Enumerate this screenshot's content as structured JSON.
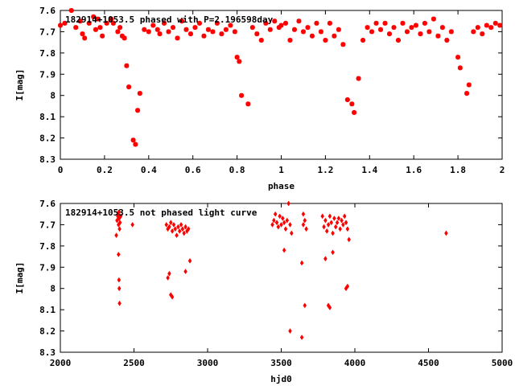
{
  "chart_data": [
    {
      "type": "scatter",
      "title": "182914+1053.5 phased with P=2.196598day",
      "xlabel": "phase",
      "ylabel": "I[mag]",
      "xlim": [
        0,
        2
      ],
      "ylim": [
        7.6,
        8.3
      ],
      "y_inverted": true,
      "grid": false,
      "xticks": [
        "0",
        "0.2",
        "0.4",
        "0.6",
        "0.8",
        "1",
        "1.2",
        "1.4",
        "1.6",
        "1.8",
        "2"
      ],
      "yticks": [
        "7.6",
        "7.7",
        "7.8",
        "7.9",
        "8",
        "8.1",
        "8.2",
        "8.3"
      ],
      "marker": "star",
      "color": "#ff0000",
      "points": [
        [
          0.0,
          7.67
        ],
        [
          0.02,
          7.66
        ],
        [
          0.05,
          7.6
        ],
        [
          0.07,
          7.68
        ],
        [
          0.09,
          7.65
        ],
        [
          0.1,
          7.71
        ],
        [
          0.11,
          7.73
        ],
        [
          0.13,
          7.66
        ],
        [
          0.15,
          7.63
        ],
        [
          0.16,
          7.69
        ],
        [
          0.17,
          7.64
        ],
        [
          0.18,
          7.68
        ],
        [
          0.19,
          7.72
        ],
        [
          0.21,
          7.66
        ],
        [
          0.23,
          7.64
        ],
        [
          0.24,
          7.66
        ],
        [
          0.26,
          7.7
        ],
        [
          0.27,
          7.68
        ],
        [
          0.28,
          7.72
        ],
        [
          0.29,
          7.73
        ],
        [
          0.3,
          7.86
        ],
        [
          0.31,
          7.96
        ],
        [
          0.33,
          8.21
        ],
        [
          0.34,
          8.23
        ],
        [
          0.35,
          8.07
        ],
        [
          0.36,
          7.99
        ],
        [
          0.38,
          7.69
        ],
        [
          0.4,
          7.7
        ],
        [
          0.42,
          7.67
        ],
        [
          0.44,
          7.69
        ],
        [
          0.45,
          7.71
        ],
        [
          0.47,
          7.66
        ],
        [
          0.49,
          7.7
        ],
        [
          0.51,
          7.68
        ],
        [
          0.53,
          7.73
        ],
        [
          0.55,
          7.65
        ],
        [
          0.57,
          7.69
        ],
        [
          0.59,
          7.71
        ],
        [
          0.61,
          7.68
        ],
        [
          0.63,
          7.66
        ],
        [
          0.65,
          7.72
        ],
        [
          0.67,
          7.69
        ],
        [
          0.69,
          7.7
        ],
        [
          0.71,
          7.66
        ],
        [
          0.73,
          7.71
        ],
        [
          0.75,
          7.69
        ],
        [
          0.77,
          7.67
        ],
        [
          0.79,
          7.7
        ],
        [
          0.8,
          7.82
        ],
        [
          0.81,
          7.84
        ],
        [
          0.82,
          8.0
        ],
        [
          0.85,
          8.04
        ],
        [
          0.87,
          7.68
        ],
        [
          0.89,
          7.71
        ],
        [
          0.91,
          7.74
        ],
        [
          0.93,
          7.66
        ],
        [
          0.95,
          7.69
        ],
        [
          0.97,
          7.65
        ],
        [
          0.99,
          7.68
        ],
        [
          1.0,
          7.67
        ],
        [
          1.02,
          7.66
        ],
        [
          1.04,
          7.74
        ],
        [
          1.06,
          7.69
        ],
        [
          1.08,
          7.65
        ],
        [
          1.1,
          7.7
        ],
        [
          1.12,
          7.68
        ],
        [
          1.14,
          7.72
        ],
        [
          1.16,
          7.66
        ],
        [
          1.18,
          7.7
        ],
        [
          1.2,
          7.74
        ],
        [
          1.22,
          7.66
        ],
        [
          1.24,
          7.72
        ],
        [
          1.26,
          7.69
        ],
        [
          1.28,
          7.76
        ],
        [
          1.3,
          8.02
        ],
        [
          1.32,
          8.04
        ],
        [
          1.33,
          8.08
        ],
        [
          1.35,
          7.92
        ],
        [
          1.37,
          7.74
        ],
        [
          1.39,
          7.68
        ],
        [
          1.41,
          7.7
        ],
        [
          1.43,
          7.66
        ],
        [
          1.45,
          7.69
        ],
        [
          1.47,
          7.66
        ],
        [
          1.49,
          7.71
        ],
        [
          1.51,
          7.68
        ],
        [
          1.53,
          7.74
        ],
        [
          1.55,
          7.66
        ],
        [
          1.57,
          7.7
        ],
        [
          1.59,
          7.68
        ],
        [
          1.61,
          7.67
        ],
        [
          1.63,
          7.71
        ],
        [
          1.65,
          7.66
        ],
        [
          1.67,
          7.7
        ],
        [
          1.69,
          7.64
        ],
        [
          1.71,
          7.72
        ],
        [
          1.73,
          7.68
        ],
        [
          1.75,
          7.74
        ],
        [
          1.77,
          7.7
        ],
        [
          1.8,
          7.82
        ],
        [
          1.81,
          7.87
        ],
        [
          1.84,
          7.99
        ],
        [
          1.85,
          7.95
        ],
        [
          1.87,
          7.7
        ],
        [
          1.89,
          7.68
        ],
        [
          1.91,
          7.71
        ],
        [
          1.93,
          7.67
        ],
        [
          1.95,
          7.68
        ],
        [
          1.97,
          7.66
        ],
        [
          1.99,
          7.67
        ]
      ]
    },
    {
      "type": "scatter",
      "title": "182914+1053.5 not phased light curve",
      "xlabel": "hjd0",
      "ylabel": "I[mag]",
      "xlim": [
        2000,
        5000
      ],
      "ylim": [
        7.6,
        8.3
      ],
      "y_inverted": true,
      "grid": false,
      "xticks": [
        "2000",
        "2500",
        "3000",
        "3500",
        "4000",
        "4500",
        "5000"
      ],
      "yticks": [
        "7.6",
        "7.7",
        "7.8",
        "7.9",
        "8",
        "8.1",
        "8.2",
        "8.3"
      ],
      "marker": "diamond",
      "color": "#ff0000",
      "points": [
        [
          2380,
          7.75
        ],
        [
          2385,
          7.68
        ],
        [
          2390,
          7.66
        ],
        [
          2392,
          7.65
        ],
        [
          2395,
          7.7
        ],
        [
          2398,
          7.64
        ],
        [
          2400,
          7.67
        ],
        [
          2402,
          7.72
        ],
        [
          2395,
          7.84
        ],
        [
          2398,
          7.96
        ],
        [
          2400,
          8.0
        ],
        [
          2402,
          8.07
        ],
        [
          2405,
          7.69
        ],
        [
          2410,
          7.66
        ],
        [
          2490,
          7.7
        ],
        [
          2720,
          7.7
        ],
        [
          2730,
          7.72
        ],
        [
          2740,
          7.71
        ],
        [
          2750,
          7.69
        ],
        [
          2760,
          7.73
        ],
        [
          2770,
          7.7
        ],
        [
          2780,
          7.72
        ],
        [
          2790,
          7.75
        ],
        [
          2800,
          7.71
        ],
        [
          2810,
          7.73
        ],
        [
          2820,
          7.7
        ],
        [
          2830,
          7.72
        ],
        [
          2840,
          7.74
        ],
        [
          2850,
          7.71
        ],
        [
          2860,
          7.73
        ],
        [
          2870,
          7.72
        ],
        [
          2730,
          7.95
        ],
        [
          2740,
          7.93
        ],
        [
          2750,
          8.03
        ],
        [
          2760,
          8.04
        ],
        [
          2850,
          7.92
        ],
        [
          2880,
          7.87
        ],
        [
          3440,
          7.7
        ],
        [
          3450,
          7.68
        ],
        [
          3460,
          7.65
        ],
        [
          3470,
          7.69
        ],
        [
          3480,
          7.71
        ],
        [
          3490,
          7.66
        ],
        [
          3500,
          7.7
        ],
        [
          3510,
          7.67
        ],
        [
          3520,
          7.69
        ],
        [
          3530,
          7.72
        ],
        [
          3540,
          7.68
        ],
        [
          3550,
          7.6
        ],
        [
          3560,
          7.7
        ],
        [
          3570,
          7.74
        ],
        [
          3520,
          7.82
        ],
        [
          3560,
          8.2
        ],
        [
          3640,
          8.23
        ],
        [
          3640,
          7.88
        ],
        [
          3660,
          8.08
        ],
        [
          3650,
          7.7
        ],
        [
          3660,
          7.68
        ],
        [
          3670,
          7.72
        ],
        [
          3650,
          7.65
        ],
        [
          3780,
          7.66
        ],
        [
          3790,
          7.71
        ],
        [
          3800,
          7.68
        ],
        [
          3810,
          7.73
        ],
        [
          3820,
          7.7
        ],
        [
          3830,
          7.66
        ],
        [
          3840,
          7.69
        ],
        [
          3850,
          7.74
        ],
        [
          3860,
          7.67
        ],
        [
          3870,
          7.71
        ],
        [
          3880,
          7.69
        ],
        [
          3890,
          7.67
        ],
        [
          3900,
          7.72
        ],
        [
          3910,
          7.68
        ],
        [
          3920,
          7.7
        ],
        [
          3930,
          7.66
        ],
        [
          3940,
          7.69
        ],
        [
          3950,
          7.72
        ],
        [
          3800,
          7.86
        ],
        [
          3820,
          8.08
        ],
        [
          3830,
          8.09
        ],
        [
          3850,
          7.83
        ],
        [
          3940,
          8.0
        ],
        [
          3950,
          7.99
        ],
        [
          3960,
          7.77
        ],
        [
          4620,
          7.74
        ]
      ]
    }
  ]
}
